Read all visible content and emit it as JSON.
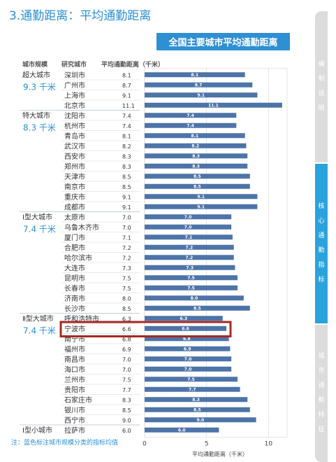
{
  "page": {
    "section_title": "3.通勤距离：平均通勤距离",
    "footnote": "注：蓝色标注城市规模分类的指标均值"
  },
  "side_tabs": [
    {
      "label": "编制说明",
      "active": false
    },
    {
      "label": "核心通勤指标",
      "active": true
    },
    {
      "label": "城市通勤特征",
      "active": false
    }
  ],
  "colors": {
    "bar": "#4d74a8",
    "accent": "#2b8fd6",
    "highlight_box": "#a52a22",
    "side_tab_inactive": "#dcdcdc",
    "side_tab_active": "#2aa3dd"
  },
  "chart_data": {
    "type": "bar",
    "orientation": "horizontal",
    "title": "全国主要城市平均通勤距离",
    "column_headers": [
      "城市规模",
      "研究城市",
      "平均通勤距离（千米）"
    ],
    "xlabel": "平均通勤距离（千米）",
    "xlim": [
      0,
      11.5
    ],
    "xticks": [
      0,
      5,
      10
    ],
    "grid": true,
    "highlight": "宁波市",
    "groups": [
      {
        "name": "超大城市",
        "mean": "9.3 千米"
      },
      {
        "name": "特大城市",
        "mean": "8.3 千米"
      },
      {
        "name": "Ⅰ型大城市",
        "mean": "7.4 千米"
      },
      {
        "name": "Ⅱ型大城市",
        "mean": "7.4 千米"
      },
      {
        "name": "Ⅰ型小城市",
        "mean": ""
      }
    ],
    "categories": [
      "深圳市",
      "广州市",
      "上海市",
      "北京市",
      "沈阳市",
      "杭州市",
      "青岛市",
      "武汉市",
      "西安市",
      "郑州市",
      "天津市",
      "南京市",
      "重庆市",
      "成都市",
      "太原市",
      "乌鲁木齐市",
      "厦门市",
      "合肥市",
      "哈尔滨市",
      "大连市",
      "昆明市",
      "长春市",
      "济南市",
      "长沙市",
      "呼和浩特市",
      "宁波市",
      "南宁市",
      "福州市",
      "南昌市",
      "海口市",
      "兰州市",
      "贵阳市",
      "石家庄市",
      "银川市",
      "西宁市",
      "拉萨市"
    ],
    "values": [
      8.1,
      8.7,
      9.1,
      11.1,
      7.4,
      7.4,
      8.1,
      8.2,
      8.3,
      8.3,
      8.5,
      8.5,
      9.1,
      9.1,
      7.0,
      7.0,
      7.1,
      7.2,
      7.2,
      7.3,
      7.5,
      7.5,
      8.0,
      8.5,
      6.3,
      6.6,
      6.8,
      6.9,
      7.0,
      7.0,
      7.5,
      7.7,
      8.3,
      8.5,
      9.0,
      6.0
    ],
    "value_labels": [
      "8.1",
      "8.7",
      "9.1",
      "11.1",
      "7.4",
      "7.4",
      "8.1",
      "8.2",
      "8.3",
      "8.3",
      "8.5",
      "8.5",
      "9.1",
      "9.1",
      "7.0",
      "7.0",
      "7.1",
      "7.2",
      "7.2",
      "7.3",
      "7.5",
      "7.5",
      "8.0",
      "8.5",
      "6.3",
      "6.6",
      "6.8",
      "6.9",
      "7.0",
      "7.0",
      "7.5",
      "7.7",
      "8.3",
      "8.5",
      "9.0",
      "6.0"
    ],
    "group_of_row": [
      0,
      0,
      0,
      0,
      1,
      1,
      1,
      1,
      1,
      1,
      1,
      1,
      1,
      1,
      2,
      2,
      2,
      2,
      2,
      2,
      2,
      2,
      2,
      2,
      3,
      3,
      3,
      3,
      3,
      3,
      3,
      3,
      3,
      3,
      3,
      4
    ]
  }
}
